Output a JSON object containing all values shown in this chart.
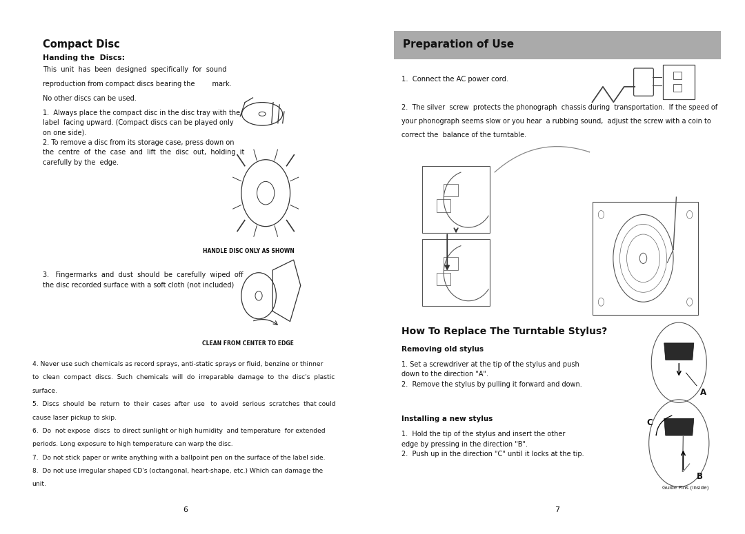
{
  "outer_bg": "#ffffff",
  "page_bg": "#ffffff",
  "page_border": "#c0c0c0",
  "left_page": {
    "title": "Compact Disc",
    "subtitle": "Handing the  Discs:",
    "para1_line1": "This  unit  has  been  designed  specifically  for  sound",
    "para1_line2": "reproduction from compact discs bearing the        mark.",
    "para1_line3": "No other discs can be used.",
    "para2": "1.  Always place the compact disc in the disc tray with the\nlabel  facing upward. (Compact discs can be played only\non one side).\n2. To remove a disc from its storage case, press down on\nthe  centre  of  the  case  and  lift  the  disc  out,  holding  it\ncarefully by the  edge.",
    "caption1": "HANDLE DISC ONLY AS SHOWN",
    "para3": "3.   Fingermarks  and  dust  should  be  carefully  wiped  off\nthe disc recorded surface with a soft cloth (not included)",
    "caption2": "CLEAN FROM CENTER TO EDGE",
    "para4_lines": [
      "4. Never use such chemicals as record sprays, anti-static sprays or fluid, benzine or thinner",
      "to  clean  compact  discs.  Such  chemicals  will  do  irreparable  damage  to  the  disc's  plastic",
      "surface.",
      "5.  Discs  should  be  return  to  their  cases  after  use   to  avoid  serious  scratches  that could",
      "cause laser pickup to skip.",
      "6.  Do  not expose  discs  to direct sunlight or high humidity  and temperature  for extended",
      "periods. Long exposure to high temperature can warp the disc.",
      "7.  Do not stick paper or write anything with a ballpoint pen on the surface of the label side.",
      "8.  Do not use irregular shaped CD's (octangonal, heart-shape, etc.) Which can damage the",
      "unit."
    ],
    "page_num": "6"
  },
  "right_page": {
    "header": "Preparation of Use",
    "header_bg": "#aaaaaa",
    "para1": "1.  Connect the AC power cord.",
    "para2_lines": [
      "2.  The silver  screw  protects the phonograph  chassis during  transportation.  If the speed of",
      "your phonograph seems slow or you hear  a rubbing sound,  adjust the screw with a coin to",
      "correct the  balance of the turntable."
    ],
    "section_title": "How To Replace The Turntable Stylus?",
    "sub1_title": "Removing old stylus",
    "sub1_text": "1. Set a screwdriver at the tip of the stylus and push\ndown to the direction \"A\".\n2.  Remove the stylus by pulling it forward and down.",
    "sub2_title": "Installing a new stylus",
    "sub2_text": "1.  Hold the tip of the stylus and insert the other\nedge by pressing in the direction \"B\".\n2.  Push up in the direction \"C\" until it locks at the tip.",
    "label_a": "A",
    "label_b": "B",
    "label_c": "C",
    "guide_pins": "Guide Pins (Inside)",
    "page_num": "7"
  }
}
